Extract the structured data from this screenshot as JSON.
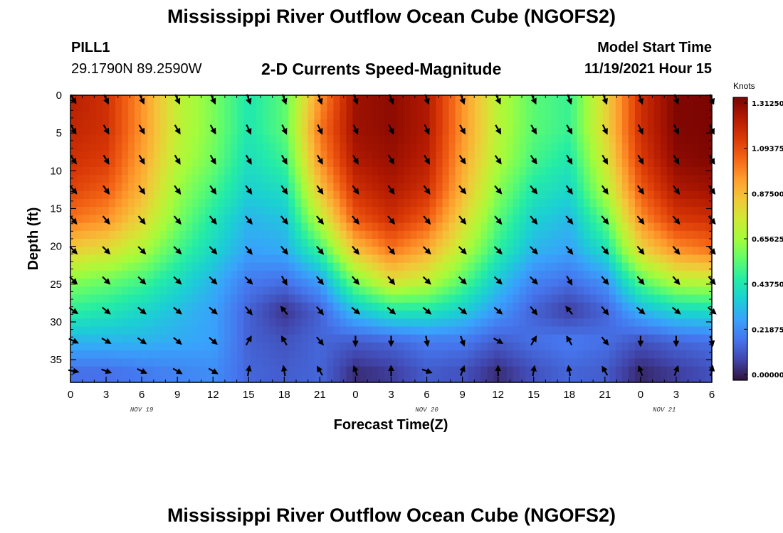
{
  "page": {
    "title": "Mississippi River Outflow Ocean Cube (NGOFS2)",
    "title_repeat": "Mississippi River Outflow Ocean Cube (NGOFS2)",
    "station_id": "PILL1",
    "station_coords": "29.1790N  89.2590W",
    "model_start_label": "Model Start Time",
    "model_start_value": "11/19/2021 Hour 15"
  },
  "chart_data": {
    "type": "heatmap",
    "title": "2-D Currents Speed-Magnitude",
    "xlabel": "Forecast Time(Z)",
    "ylabel": "Depth (ft)",
    "x_hours": [
      0,
      3,
      6,
      9,
      12,
      15,
      18,
      21,
      24,
      27,
      30,
      33,
      36,
      39,
      42,
      45,
      48,
      51,
      54
    ],
    "x_tick_labels": [
      "0",
      "3",
      "6",
      "9",
      "12",
      "15",
      "18",
      "21",
      "0",
      "3",
      "6",
      "9",
      "12",
      "15",
      "18",
      "21",
      "0",
      "3",
      "6"
    ],
    "date_labels": [
      {
        "label": "NOV 19",
        "hour": 6
      },
      {
        "label": "NOV 20",
        "hour": 30
      },
      {
        "label": "NOV 21",
        "hour": 50
      }
    ],
    "y_ticks": [
      0,
      5,
      10,
      15,
      20,
      25,
      30,
      35
    ],
    "ylim": [
      0,
      38
    ],
    "xlim": [
      0,
      54
    ],
    "colorbar": {
      "unit": "Knots",
      "ticks": [
        "1.31250",
        "1.09375",
        "0.87500",
        "0.65625",
        "0.43750",
        "0.21875",
        "0.00000"
      ],
      "range": [
        0,
        1.3125
      ],
      "colors": [
        "#30123b",
        "#4145ab",
        "#4675ed",
        "#39a2fc",
        "#1bcfd4",
        "#24eca6",
        "#61fc6c",
        "#a4fc3b",
        "#d1e834",
        "#f3c63a",
        "#fe9b2d",
        "#f36315",
        "#d93806",
        "#b11901",
        "#7a0402"
      ]
    },
    "speed_knots_by_layer": {
      "depths_ft": [
        0.5,
        4.5,
        8.5,
        12.5,
        16.5,
        20.5,
        24.5,
        28.5,
        32.5,
        36.5
      ],
      "rows": [
        [
          1.2,
          1.15,
          0.95,
          0.72,
          0.6,
          0.45,
          0.55,
          0.95,
          1.25,
          1.28,
          1.22,
          0.95,
          0.7,
          0.55,
          0.5,
          0.8,
          1.15,
          1.3,
          1.31
        ],
        [
          1.18,
          1.15,
          0.95,
          0.72,
          0.6,
          0.45,
          0.55,
          1.0,
          1.25,
          1.28,
          1.22,
          0.95,
          0.7,
          0.55,
          0.5,
          0.8,
          1.15,
          1.3,
          1.31
        ],
        [
          1.15,
          1.12,
          0.92,
          0.7,
          0.58,
          0.42,
          0.5,
          0.95,
          1.22,
          1.26,
          1.2,
          0.92,
          0.68,
          0.52,
          0.45,
          0.75,
          1.12,
          1.28,
          1.3
        ],
        [
          1.1,
          1.05,
          0.88,
          0.65,
          0.52,
          0.38,
          0.42,
          0.85,
          1.15,
          1.22,
          1.15,
          0.88,
          0.62,
          0.45,
          0.4,
          0.68,
          1.05,
          1.22,
          1.25
        ],
        [
          1.0,
          0.95,
          0.8,
          0.6,
          0.45,
          0.32,
          0.35,
          0.7,
          1.05,
          1.15,
          1.05,
          0.8,
          0.55,
          0.38,
          0.33,
          0.55,
          0.95,
          1.12,
          1.15
        ],
        [
          0.82,
          0.78,
          0.68,
          0.52,
          0.4,
          0.28,
          0.3,
          0.5,
          0.85,
          1.0,
          0.9,
          0.7,
          0.48,
          0.32,
          0.28,
          0.42,
          0.8,
          0.95,
          1.0
        ],
        [
          0.62,
          0.58,
          0.52,
          0.42,
          0.32,
          0.2,
          0.18,
          0.28,
          0.6,
          0.78,
          0.72,
          0.55,
          0.36,
          0.22,
          0.18,
          0.25,
          0.55,
          0.7,
          0.72
        ],
        [
          0.48,
          0.45,
          0.4,
          0.34,
          0.28,
          0.15,
          0.06,
          0.15,
          0.35,
          0.45,
          0.45,
          0.38,
          0.26,
          0.15,
          0.08,
          0.15,
          0.32,
          0.4,
          0.42
        ],
        [
          0.32,
          0.32,
          0.32,
          0.3,
          0.28,
          0.15,
          0.12,
          0.16,
          0.14,
          0.16,
          0.2,
          0.2,
          0.14,
          0.18,
          0.2,
          0.18,
          0.12,
          0.16,
          0.18
        ],
        [
          0.18,
          0.18,
          0.2,
          0.22,
          0.24,
          0.16,
          0.14,
          0.16,
          0.05,
          0.08,
          0.14,
          0.12,
          0.05,
          0.12,
          0.16,
          0.14,
          0.04,
          0.08,
          0.12
        ]
      ]
    },
    "vector_direction_deg": {
      "description_free": true,
      "rows": [
        [
          150,
          155,
          155,
          155,
          155,
          160,
          160,
          160,
          160,
          160,
          160,
          160,
          155,
          155,
          160,
          160,
          160,
          160,
          160
        ],
        [
          150,
          150,
          150,
          150,
          150,
          155,
          155,
          155,
          155,
          155,
          155,
          150,
          150,
          150,
          150,
          155,
          155,
          155,
          155
        ],
        [
          145,
          150,
          150,
          150,
          150,
          150,
          150,
          150,
          150,
          150,
          150,
          145,
          145,
          145,
          150,
          150,
          150,
          150,
          150
        ],
        [
          140,
          145,
          145,
          145,
          145,
          145,
          145,
          145,
          145,
          145,
          145,
          140,
          140,
          140,
          145,
          145,
          145,
          145,
          145
        ],
        [
          140,
          140,
          140,
          140,
          140,
          140,
          140,
          140,
          140,
          140,
          140,
          140,
          140,
          140,
          140,
          140,
          140,
          140,
          140
        ],
        [
          135,
          135,
          135,
          135,
          135,
          140,
          140,
          140,
          140,
          140,
          135,
          135,
          135,
          135,
          140,
          140,
          140,
          140,
          140
        ],
        [
          135,
          135,
          135,
          135,
          135,
          135,
          150,
          140,
          140,
          140,
          135,
          135,
          135,
          135,
          150,
          140,
          140,
          140,
          140
        ],
        [
          125,
          130,
          130,
          130,
          130,
          140,
          320,
          140,
          130,
          130,
          130,
          130,
          130,
          140,
          320,
          140,
          130,
          130,
          130
        ],
        [
          115,
          120,
          125,
          130,
          130,
          30,
          330,
          140,
          180,
          180,
          170,
          160,
          120,
          30,
          330,
          140,
          180,
          180,
          170
        ],
        [
          100,
          110,
          115,
          120,
          120,
          10,
          350,
          330,
          340,
          0,
          110,
          20,
          0,
          10,
          350,
          330,
          340,
          20,
          10
        ]
      ]
    }
  }
}
